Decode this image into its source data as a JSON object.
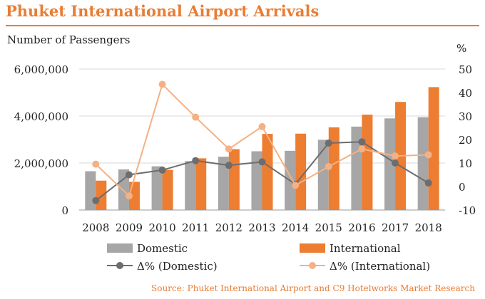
{
  "chart_data": {
    "type": "bar",
    "title": "Phuket International Airport Arrivals",
    "ylabel": "Number of Passengers",
    "y2label": "%",
    "source": "Source: Phuket International Airport and C9 Hotelworks Market Research",
    "categories": [
      "2008",
      "2009",
      "2010",
      "2011",
      "2012",
      "2013",
      "2014",
      "2015",
      "2016",
      "2017",
      "2018"
    ],
    "ylim": [
      0,
      6000000
    ],
    "y_ticks": [
      "0",
      "2,000,000",
      "4,000,000",
      "6,000,000"
    ],
    "y2lim": [
      -10,
      50
    ],
    "y2_ticks": [
      "-10",
      "0",
      "10",
      "20",
      "30",
      "40",
      "50"
    ],
    "series": [
      {
        "name": "Domestic",
        "type": "bar",
        "axis": "left",
        "color": "#a6a6a6",
        "values": [
          1650000,
          1730000,
          1860000,
          2080000,
          2270000,
          2500000,
          2520000,
          2990000,
          3550000,
          3900000,
          3950000
        ]
      },
      {
        "name": "International",
        "type": "bar",
        "axis": "left",
        "color": "#ed7d31",
        "values": [
          1250000,
          1200000,
          1710000,
          2200000,
          2590000,
          3240000,
          3250000,
          3520000,
          4060000,
          4600000,
          5230000
        ]
      },
      {
        "name": "Δ% (Domestic)",
        "type": "line",
        "axis": "right",
        "color": "#6d6d6d",
        "values": [
          -6,
          5,
          7,
          11,
          9,
          10.5,
          1,
          18.5,
          19,
          10,
          1.5
        ]
      },
      {
        "name": "Δ% (International)",
        "type": "line",
        "axis": "right",
        "color": "#f4b183",
        "values": [
          9.5,
          -4,
          43.5,
          29.5,
          16,
          25.5,
          0.5,
          8.5,
          16,
          13,
          13.5
        ]
      }
    ],
    "grid": true,
    "legend": "bottom"
  }
}
